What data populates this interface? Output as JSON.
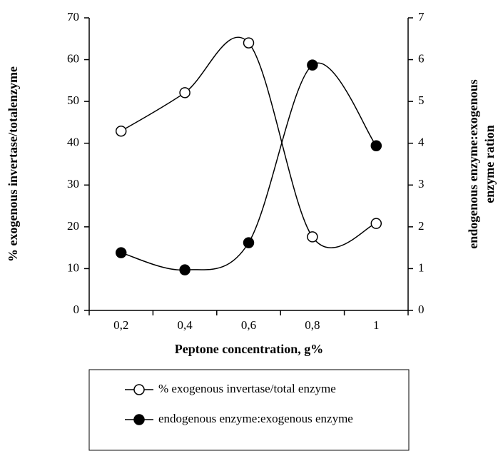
{
  "chart_data": {
    "type": "line",
    "xlabel": "Peptone concentration, g%",
    "ylabel": "% exogenous invertase/totalenzyme",
    "y2label": [
      "endogenous enzyme:exogenous",
      "enzyme ration"
    ],
    "categories": [
      "0,2",
      "0,4",
      "0,6",
      "0,8",
      "1"
    ],
    "ylim": [
      0,
      70
    ],
    "yticks": [
      0,
      10,
      20,
      30,
      40,
      50,
      60,
      70
    ],
    "y2lim": [
      0,
      7
    ],
    "y2ticks": [
      0,
      1,
      2,
      3,
      4,
      5,
      6,
      7
    ],
    "series": [
      {
        "name": "% exogenous invertase/total enzyme",
        "color": "#000000",
        "marker": "open",
        "values": [
          42.9,
          52.1,
          64,
          17.6,
          20.8
        ]
      },
      {
        "name": "endogenous enzyme:exogenous enzyme",
        "color": "#000000",
        "marker": "filled",
        "axis": "y2",
        "values": [
          1.38,
          0.97,
          1.62,
          5.87,
          3.94
        ]
      }
    ]
  }
}
